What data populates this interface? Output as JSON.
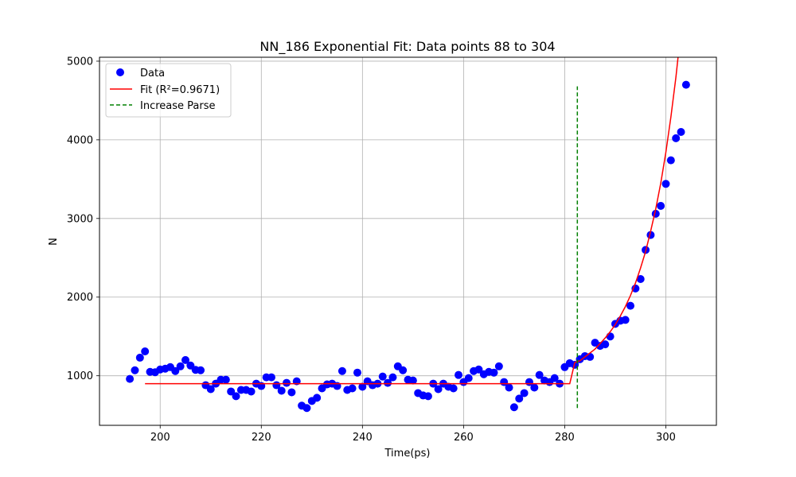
{
  "chart_data": {
    "type": "scatter",
    "title": "NN_186 Exponential Fit: Data points 88 to 304",
    "xlabel": "Time(ps)",
    "ylabel": "N",
    "xlim": [
      188,
      310
    ],
    "ylim": [
      370,
      5050
    ],
    "xticks": [
      200,
      220,
      240,
      260,
      280,
      300
    ],
    "yticks": [
      1000,
      2000,
      3000,
      4000,
      5000
    ],
    "grid": true,
    "legend_position": "top-left",
    "colors": {
      "data": "#0000ff",
      "fit": "#ff0000",
      "parse": "#008000"
    },
    "series": [
      {
        "name": "Data",
        "kind": "scatter",
        "x": [
          194,
          195,
          196,
          197,
          198,
          199,
          200,
          201,
          202,
          203,
          204,
          205,
          206,
          207,
          208,
          209,
          210,
          211,
          212,
          213,
          214,
          215,
          216,
          217,
          218,
          219,
          220,
          221,
          222,
          223,
          224,
          225,
          226,
          227,
          228,
          229,
          230,
          231,
          232,
          233,
          234,
          235,
          236,
          237,
          238,
          239,
          240,
          241,
          242,
          243,
          244,
          245,
          246,
          247,
          248,
          249,
          250,
          251,
          252,
          253,
          254,
          255,
          256,
          257,
          258,
          259,
          260,
          261,
          262,
          263,
          264,
          265,
          266,
          267,
          268,
          269,
          270,
          271,
          272,
          273,
          274,
          275,
          276,
          277,
          278,
          279,
          280,
          281,
          282,
          283,
          284,
          285,
          286,
          287,
          288,
          289,
          290,
          291,
          292,
          293,
          294,
          295,
          296,
          297,
          298,
          299,
          300,
          301,
          302,
          303,
          304
        ],
        "y": [
          960,
          1070,
          1230,
          1310,
          1050,
          1045,
          1080,
          1090,
          1110,
          1060,
          1120,
          1200,
          1130,
          1075,
          1070,
          880,
          830,
          900,
          950,
          950,
          800,
          740,
          820,
          820,
          800,
          900,
          870,
          980,
          980,
          880,
          810,
          910,
          790,
          930,
          620,
          590,
          680,
          720,
          840,
          890,
          900,
          870,
          1060,
          820,
          840,
          1040,
          860,
          930,
          880,
          900,
          990,
          910,
          980,
          1120,
          1070,
          950,
          940,
          780,
          750,
          740,
          900,
          830,
          900,
          860,
          840,
          1010,
          920,
          970,
          1060,
          1080,
          1020,
          1050,
          1040,
          1120,
          920,
          850,
          600,
          710,
          780,
          920,
          850,
          1010,
          940,
          920,
          970,
          900,
          1110,
          1160,
          1140,
          1210,
          1250,
          1240,
          1420,
          1380,
          1400,
          1500,
          1660,
          1700,
          1710,
          1890,
          2110,
          2230,
          2600,
          2790,
          3060,
          3160,
          3440,
          3740,
          4020,
          4100,
          4700
        ]
      },
      {
        "name": "Fit (R²=0.9671)",
        "kind": "line",
        "x": [
          197,
          281,
          282,
          283,
          284,
          285,
          286,
          287,
          288,
          289,
          290,
          291,
          292,
          293,
          294,
          295,
          296,
          297,
          298,
          299,
          300,
          301,
          302,
          303,
          304
        ],
        "y": [
          900,
          900,
          1170,
          1190,
          1240,
          1290,
          1340,
          1410,
          1480,
          1560,
          1650,
          1760,
          1880,
          2020,
          2180,
          2370,
          2580,
          2840,
          3120,
          3450,
          3840,
          4290,
          4800,
          5400,
          6100
        ]
      },
      {
        "name": "Increase Parse",
        "kind": "vline",
        "x": [
          282.5,
          282.5
        ],
        "y": [
          590,
          4680
        ]
      }
    ]
  }
}
